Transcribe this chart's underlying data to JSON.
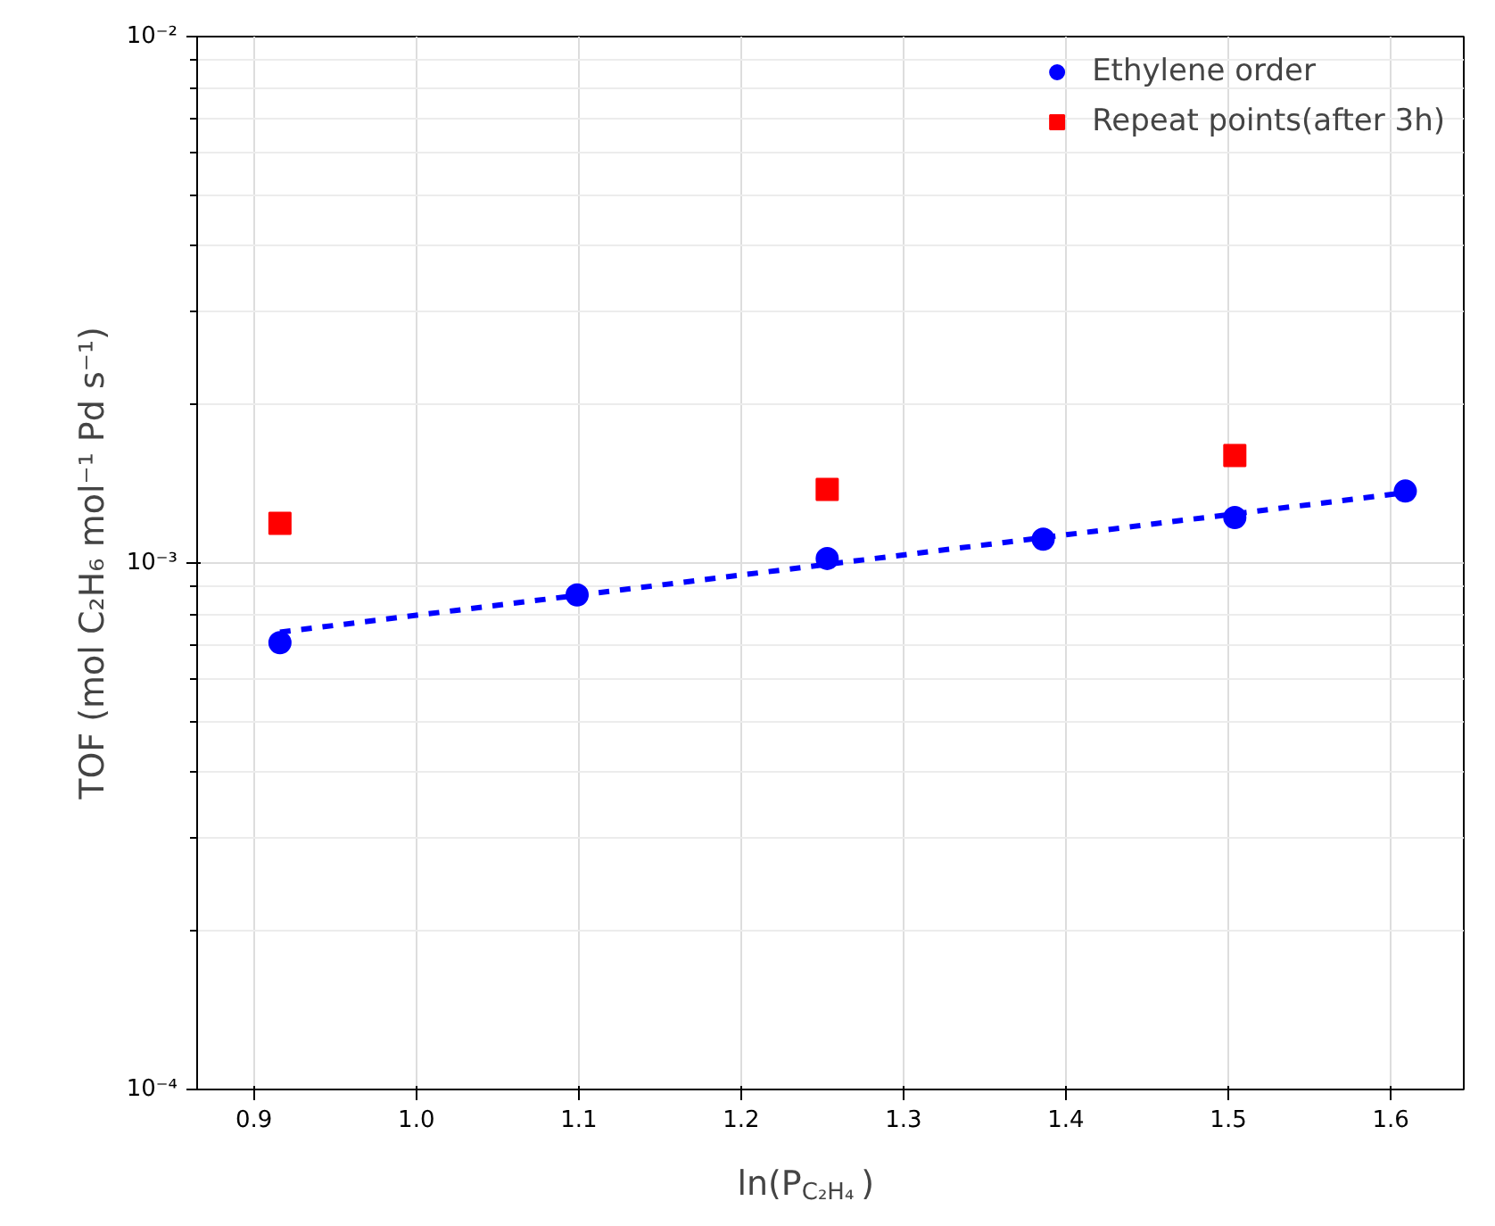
{
  "chart_data": {
    "type": "scatter",
    "xlabel": "ln(P$_{C₂H₄}$)",
    "ylabel": "TOF (mol C₂H₆ mol⁻¹ Pd s⁻¹)",
    "xlim": [
      0.865,
      1.645
    ],
    "xticks": [
      0.9,
      {
        "value": 1.0,
        "label": "1.0"
      },
      1.1,
      1.2,
      1.3,
      1.4,
      1.5,
      1.6
    ],
    "ylim": [
      0.0001,
      0.01
    ],
    "yticks": [
      {
        "value": 0.0001,
        "label": "10⁻⁴"
      },
      {
        "value": 0.001,
        "label": "10⁻³"
      },
      {
        "value": 0.01,
        "label": "10⁻²"
      }
    ],
    "log": "y",
    "grid": true,
    "legend": "top right",
    "series": [
      {
        "name": "Ethylene order",
        "type": "scatter",
        "marker": "circle",
        "color": "#0000ff",
        "x": [
          0.916,
          1.099,
          1.253,
          1.386,
          1.504,
          1.609
        ],
        "values": [
          0.000706,
          0.00087,
          0.00102,
          0.00111,
          0.00122,
          0.00137
        ]
      },
      {
        "name": "Repeat points(after 3h)",
        "type": "scatter",
        "marker": "square",
        "color": "#ff0000",
        "x": [
          0.916,
          1.253,
          1.504
        ],
        "values": [
          0.00119,
          0.00138,
          0.0016
        ]
      },
      {
        "type": "line",
        "line_style": "dashed",
        "marker": "none",
        "color": "#0000ff",
        "x": [
          0.916,
          1.609
        ],
        "values": [
          0.000739,
          0.00136
        ]
      }
    ]
  }
}
